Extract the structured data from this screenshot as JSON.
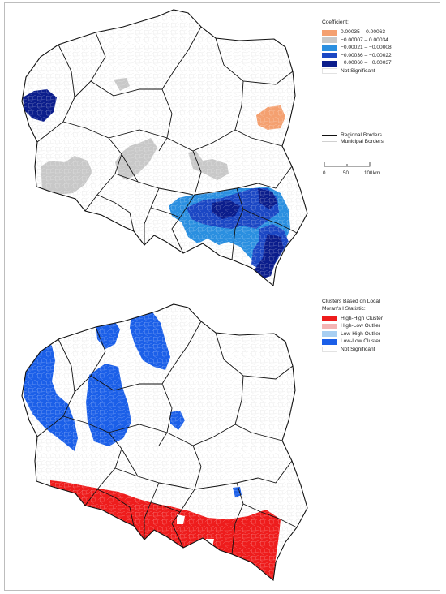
{
  "coefficient_legend": {
    "title": "Coefficient:",
    "items": [
      {
        "label": "0.00035 – 0.00063",
        "color": "#f4a070"
      },
      {
        "label": "−0.00007 – 0.00034",
        "color": "#c8c8c8"
      },
      {
        "label": "−0.00021 – −0.00008",
        "color": "#2a8fe0"
      },
      {
        "label": "−0.00036 – −0.00022",
        "color": "#1b47c4"
      },
      {
        "label": "−0.00060 – −0.00037",
        "color": "#0b1d8c"
      },
      {
        "label": "Not Significant",
        "color": "#ffffff"
      }
    ]
  },
  "border_legend": {
    "regional": "Regional Borders",
    "municipal": "Municipal Borders"
  },
  "scale": {
    "ticks": [
      "0",
      "50",
      "100"
    ],
    "unit": "km"
  },
  "cluster_legend": {
    "title_line1": "Clusters Based on Local",
    "title_line2": "Moran's I Statistic:",
    "items": [
      {
        "label": "High-High Cluster",
        "color": "#ee1c1c"
      },
      {
        "label": "High-Low Outlier",
        "color": "#f4b4b4"
      },
      {
        "label": "Low-High Outlier",
        "color": "#a8cff2"
      },
      {
        "label": "Low-Low Cluster",
        "color": "#1b5fe8"
      },
      {
        "label": "Not Significant",
        "color": "#ffffff"
      }
    ]
  }
}
